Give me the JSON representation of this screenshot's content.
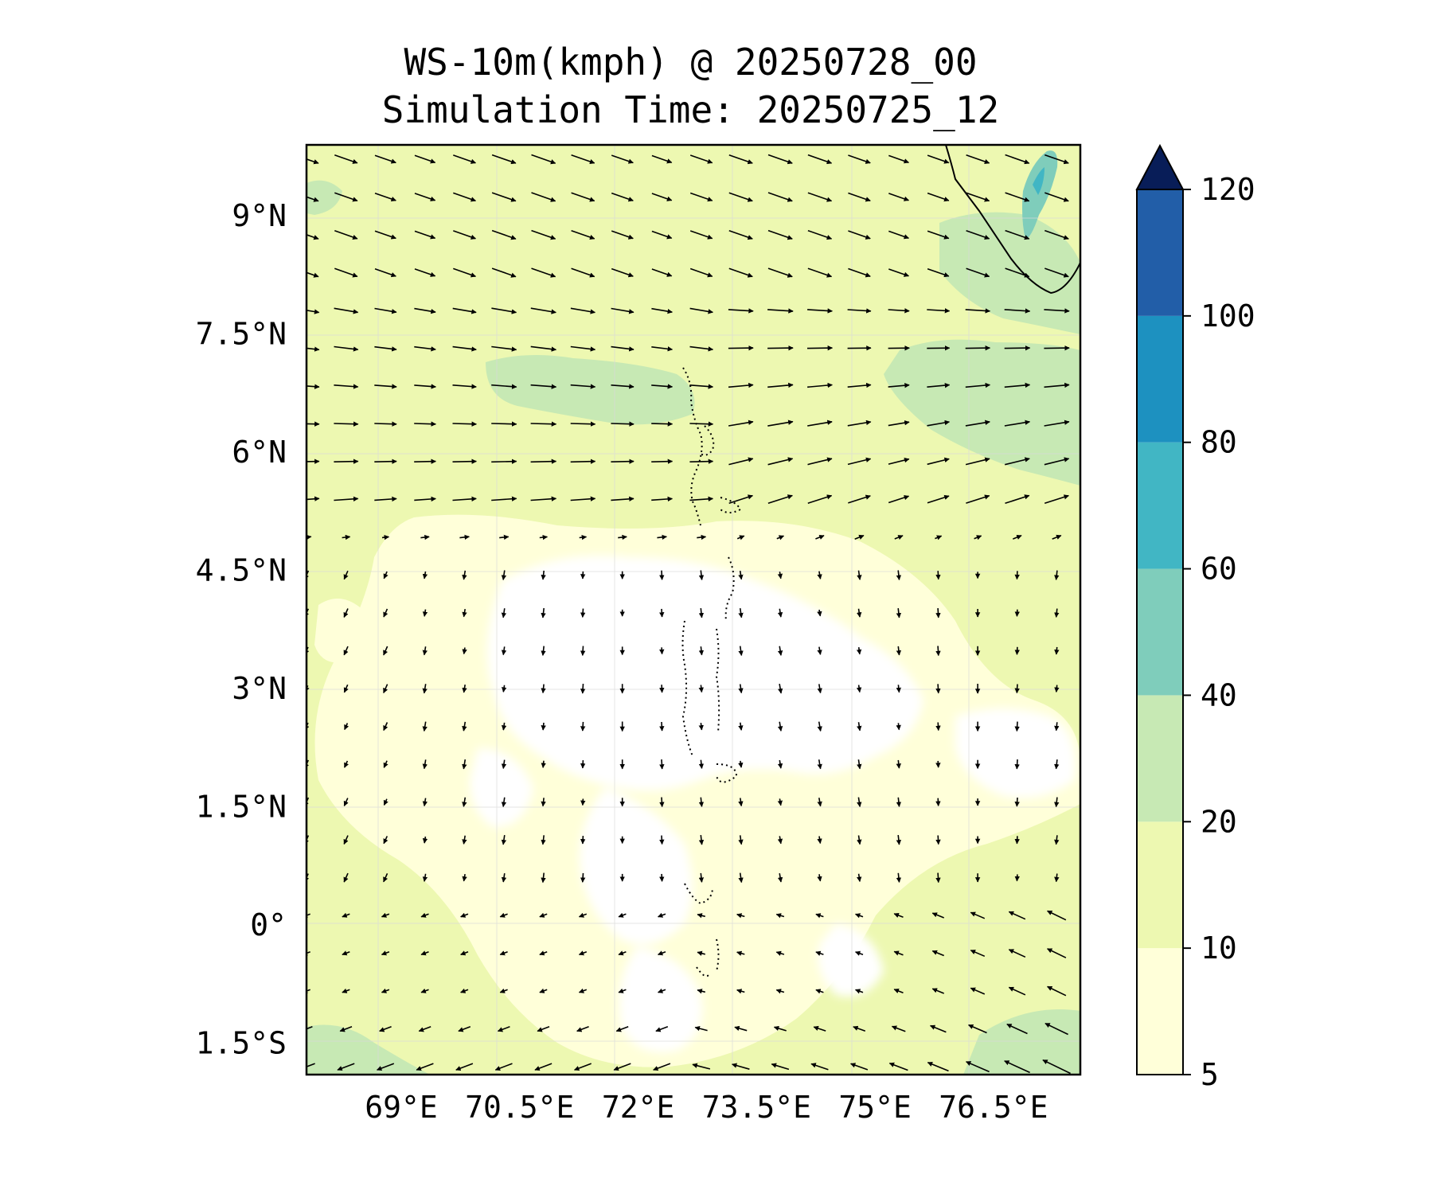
{
  "title": {
    "line1": "WS-10m(kmph) @ 20250728_00",
    "line2": "Simulation Time: 20250725_12"
  },
  "map": {
    "lon_range": [
      67.8,
      77.6
    ],
    "lat_range": [
      -1.9,
      9.9
    ],
    "x_ticks": [
      {
        "value": 69,
        "label": "69°E"
      },
      {
        "value": 70.5,
        "label": "70.5°E"
      },
      {
        "value": 72,
        "label": "72°E"
      },
      {
        "value": 73.5,
        "label": "73.5°E"
      },
      {
        "value": 75,
        "label": "75°E"
      },
      {
        "value": 76.5,
        "label": "76.5°E"
      }
    ],
    "y_ticks": [
      {
        "value": 9,
        "label": "9°N"
      },
      {
        "value": 7.5,
        "label": "7.5°N"
      },
      {
        "value": 6,
        "label": "6°N"
      },
      {
        "value": 4.5,
        "label": "4.5°N"
      },
      {
        "value": 3,
        "label": "3°N"
      },
      {
        "value": 1.5,
        "label": "1.5°N"
      },
      {
        "value": 0,
        "label": "0°"
      },
      {
        "value": -1.5,
        "label": "1.5°S"
      }
    ],
    "gridlines": true
  },
  "colorbar": {
    "levels": [
      5,
      10,
      20,
      40,
      60,
      80,
      100,
      120
    ],
    "labels": [
      "5",
      "10",
      "20",
      "40",
      "60",
      "80",
      "100",
      "120"
    ],
    "colors": [
      "#ffffd9",
      "#edf8b1",
      "#c7e9b4",
      "#7fcdbb",
      "#41b6c4",
      "#1d91c0",
      "#225ea8",
      "#253494"
    ],
    "extend_color": "#081d58",
    "extend": "max"
  }
}
